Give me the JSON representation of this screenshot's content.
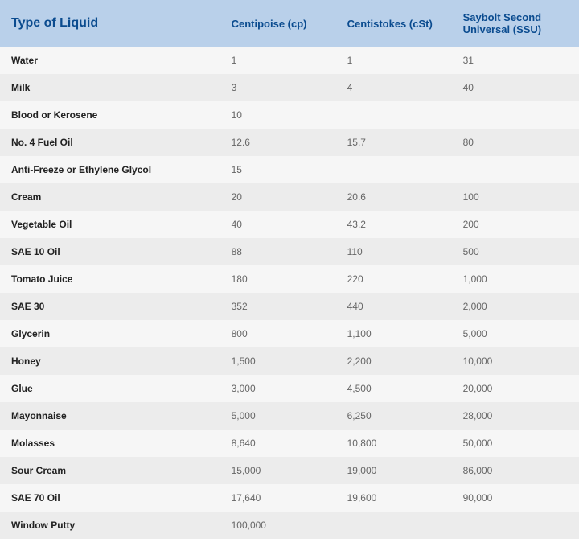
{
  "table": {
    "type": "table",
    "background_color": "#ffffff",
    "header_bg": "#b9d0ea",
    "header_text_color": "#0a4b8f",
    "row_bg_odd": "#f6f6f6",
    "row_bg_even": "#ececec",
    "label_text_color": "#222222",
    "value_text_color": "#666666",
    "header_fontsize_main": 16,
    "header_fontsize_cols": 13,
    "body_fontsize": 12,
    "column_widths_pct": [
      38,
      20,
      20,
      22
    ],
    "columns": [
      {
        "label": "Type of Liquid",
        "align": "left"
      },
      {
        "label": "Centipoise (cp)",
        "align": "left"
      },
      {
        "label": "Centistokes (cSt)",
        "align": "left"
      },
      {
        "label": "Saybolt Second Universal (SSU)",
        "align": "left"
      }
    ],
    "rows": [
      {
        "name": "Water",
        "cp": "1",
        "cst": "1",
        "ssu": "31"
      },
      {
        "name": "Milk",
        "cp": "3",
        "cst": "4",
        "ssu": "40"
      },
      {
        "name": "Blood or Kerosene",
        "cp": "10",
        "cst": "",
        "ssu": ""
      },
      {
        "name": "No. 4 Fuel Oil",
        "cp": "12.6",
        "cst": "15.7",
        "ssu": "80"
      },
      {
        "name": "Anti-Freeze or Ethylene Glycol",
        "cp": "15",
        "cst": "",
        "ssu": ""
      },
      {
        "name": "Cream",
        "cp": "20",
        "cst": "20.6",
        "ssu": "100"
      },
      {
        "name": "Vegetable Oil",
        "cp": "40",
        "cst": "43.2",
        "ssu": "200"
      },
      {
        "name": "SAE 10 Oil",
        "cp": "88",
        "cst": "110",
        "ssu": "500"
      },
      {
        "name": "Tomato Juice",
        "cp": "180",
        "cst": "220",
        "ssu": "1,000"
      },
      {
        "name": "SAE 30",
        "cp": "352",
        "cst": "440",
        "ssu": "2,000"
      },
      {
        "name": "Glycerin",
        "cp": "800",
        "cst": "1,100",
        "ssu": "5,000"
      },
      {
        "name": "Honey",
        "cp": "1,500",
        "cst": "2,200",
        "ssu": "10,000"
      },
      {
        "name": "Glue",
        "cp": "3,000",
        "cst": "4,500",
        "ssu": "20,000"
      },
      {
        "name": "Mayonnaise",
        "cp": "5,000",
        "cst": "6,250",
        "ssu": "28,000"
      },
      {
        "name": "Molasses",
        "cp": "8,640",
        "cst": "10,800",
        "ssu": "50,000"
      },
      {
        "name": "Sour Cream",
        "cp": "15,000",
        "cst": "19,000",
        "ssu": "86,000"
      },
      {
        "name": "SAE 70 Oil",
        "cp": "17,640",
        "cst": "19,600",
        "ssu": "90,000"
      },
      {
        "name": "Window Putty",
        "cp": "100,000",
        "cst": "",
        "ssu": ""
      }
    ]
  }
}
